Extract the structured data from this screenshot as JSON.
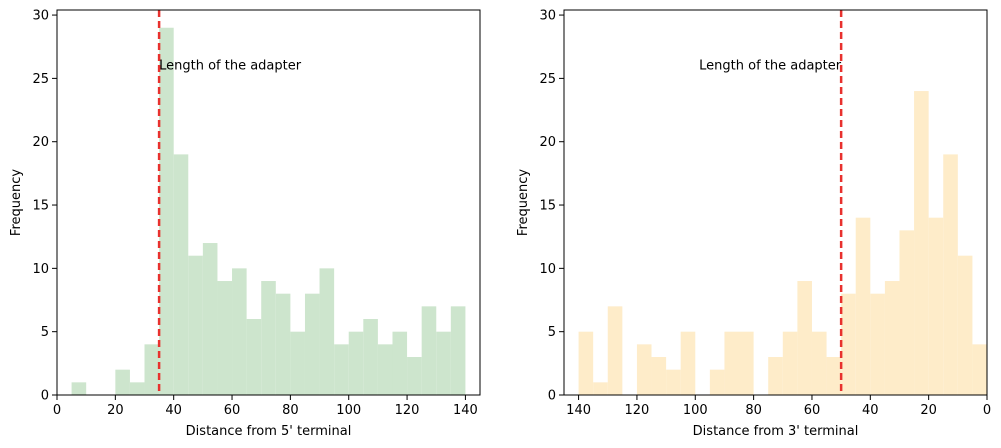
{
  "chart_data": [
    {
      "type": "histogram",
      "xlabel": "Distance from 5' terminal",
      "ylabel": "Frequency",
      "xlim": [
        0,
        145
      ],
      "ylim": [
        0,
        30.4
      ],
      "x_reversed": false,
      "xticks": [
        0,
        20,
        40,
        60,
        80,
        100,
        120,
        140
      ],
      "yticks": [
        0,
        5,
        10,
        15,
        20,
        25,
        30
      ],
      "bar_color": "#cde5cd",
      "bins": [
        {
          "start": 5,
          "end": 10,
          "count": 1
        },
        {
          "start": 20,
          "end": 25,
          "count": 2
        },
        {
          "start": 25,
          "end": 30,
          "count": 1
        },
        {
          "start": 30,
          "end": 35,
          "count": 4
        },
        {
          "start": 35,
          "end": 40,
          "count": 29
        },
        {
          "start": 40,
          "end": 45,
          "count": 19
        },
        {
          "start": 45,
          "end": 50,
          "count": 11
        },
        {
          "start": 50,
          "end": 55,
          "count": 12
        },
        {
          "start": 55,
          "end": 60,
          "count": 9
        },
        {
          "start": 60,
          "end": 65,
          "count": 10
        },
        {
          "start": 65,
          "end": 70,
          "count": 6
        },
        {
          "start": 70,
          "end": 75,
          "count": 9
        },
        {
          "start": 75,
          "end": 80,
          "count": 8
        },
        {
          "start": 80,
          "end": 85,
          "count": 5
        },
        {
          "start": 85,
          "end": 90,
          "count": 8
        },
        {
          "start": 90,
          "end": 95,
          "count": 10
        },
        {
          "start": 95,
          "end": 100,
          "count": 4
        },
        {
          "start": 100,
          "end": 105,
          "count": 5
        },
        {
          "start": 105,
          "end": 110,
          "count": 6
        },
        {
          "start": 110,
          "end": 115,
          "count": 4
        },
        {
          "start": 115,
          "end": 120,
          "count": 5
        },
        {
          "start": 120,
          "end": 125,
          "count": 3
        },
        {
          "start": 125,
          "end": 130,
          "count": 7
        },
        {
          "start": 130,
          "end": 135,
          "count": 5
        },
        {
          "start": 135,
          "end": 140,
          "count": 7
        }
      ],
      "vline": {
        "x": 35,
        "color": "#e8312e",
        "style": "dashed"
      },
      "annotation": {
        "text": "Length of the adapter",
        "x": 35,
        "y": 26,
        "anchor": "start"
      }
    },
    {
      "type": "histogram",
      "xlabel": "Distance from 3' terminal",
      "ylabel": "Frequency",
      "xlim": [
        145,
        0
      ],
      "ylim": [
        0,
        30.4
      ],
      "x_reversed": true,
      "xticks": [
        140,
        120,
        100,
        80,
        60,
        40,
        20,
        0
      ],
      "yticks": [
        0,
        5,
        10,
        15,
        20,
        25,
        30
      ],
      "bar_color": "#feecc9",
      "bins": [
        {
          "start": 135,
          "end": 140,
          "count": 5
        },
        {
          "start": 130,
          "end": 135,
          "count": 1
        },
        {
          "start": 125,
          "end": 130,
          "count": 7
        },
        {
          "start": 115,
          "end": 120,
          "count": 4
        },
        {
          "start": 110,
          "end": 115,
          "count": 3
        },
        {
          "start": 105,
          "end": 110,
          "count": 2
        },
        {
          "start": 100,
          "end": 105,
          "count": 5
        },
        {
          "start": 90,
          "end": 95,
          "count": 2
        },
        {
          "start": 80,
          "end": 90,
          "count": 5
        },
        {
          "start": 70,
          "end": 75,
          "count": 3
        },
        {
          "start": 65,
          "end": 70,
          "count": 5
        },
        {
          "start": 60,
          "end": 65,
          "count": 9
        },
        {
          "start": 55,
          "end": 60,
          "count": 5
        },
        {
          "start": 50,
          "end": 55,
          "count": 3
        },
        {
          "start": 45,
          "end": 50,
          "count": 8
        },
        {
          "start": 40,
          "end": 45,
          "count": 14
        },
        {
          "start": 35,
          "end": 40,
          "count": 8
        },
        {
          "start": 30,
          "end": 35,
          "count": 9
        },
        {
          "start": 25,
          "end": 30,
          "count": 13
        },
        {
          "start": 20,
          "end": 25,
          "count": 24
        },
        {
          "start": 15,
          "end": 20,
          "count": 14
        },
        {
          "start": 10,
          "end": 15,
          "count": 19
        },
        {
          "start": 5,
          "end": 10,
          "count": 11
        },
        {
          "start": 0,
          "end": 5,
          "count": 4
        }
      ],
      "vline": {
        "x": 50,
        "color": "#e8312e",
        "style": "dashed"
      },
      "annotation": {
        "text": "Length of the adapter",
        "x": 50,
        "y": 26,
        "anchor": "end"
      }
    }
  ]
}
